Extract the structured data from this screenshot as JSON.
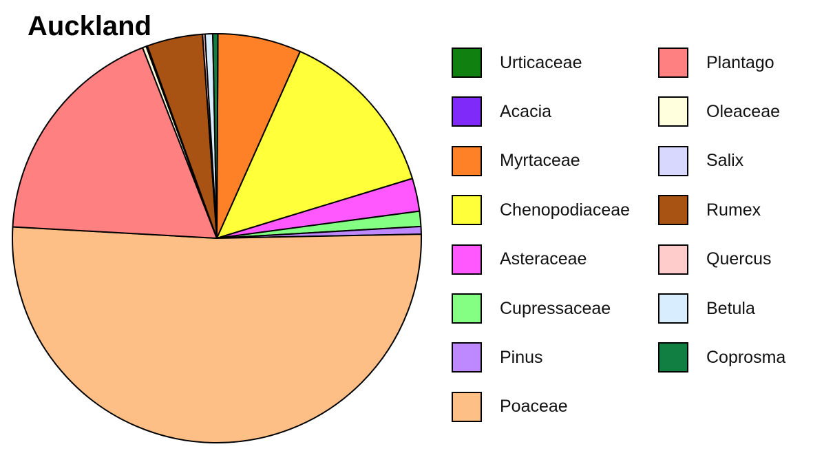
{
  "chart_data": {
    "type": "pie",
    "title": "Auckland",
    "slices": [
      {
        "label": "Urticaceae",
        "value": 0.0,
        "color": "#108010"
      },
      {
        "label": "Acacia",
        "value": 0.0,
        "color": "#7f2af8"
      },
      {
        "label": "Myrtaceae",
        "value": 6.6,
        "color": "#fe8027"
      },
      {
        "label": "Chenopodiaceae",
        "value": 13.6,
        "color": "#ffff3a"
      },
      {
        "label": "Asteraceae",
        "value": 2.6,
        "color": "#ff58ff"
      },
      {
        "label": "Cupressaceae",
        "value": 1.2,
        "color": "#84ff84"
      },
      {
        "label": "Pinus",
        "value": 0.6,
        "color": "#be88ff"
      },
      {
        "label": "Poaceae",
        "value": 51.2,
        "color": "#febf86"
      },
      {
        "label": "Plantago",
        "value": 18.2,
        "color": "#ff8080"
      },
      {
        "label": "Oleaceae",
        "value": 0.3,
        "color": "#ffffdd"
      },
      {
        "label": "Salix",
        "value": 0.1,
        "color": "#d8d8ff"
      },
      {
        "label": "Rumex",
        "value": 4.4,
        "color": "#a85214"
      },
      {
        "label": "Quercus",
        "value": 0.2,
        "color": "#ffcccc"
      },
      {
        "label": "Betula",
        "value": 0.6,
        "color": "#d8eeff"
      },
      {
        "label": "Coprosma",
        "value": 0.4,
        "color": "#127f42"
      }
    ],
    "legend_placement": "right"
  }
}
